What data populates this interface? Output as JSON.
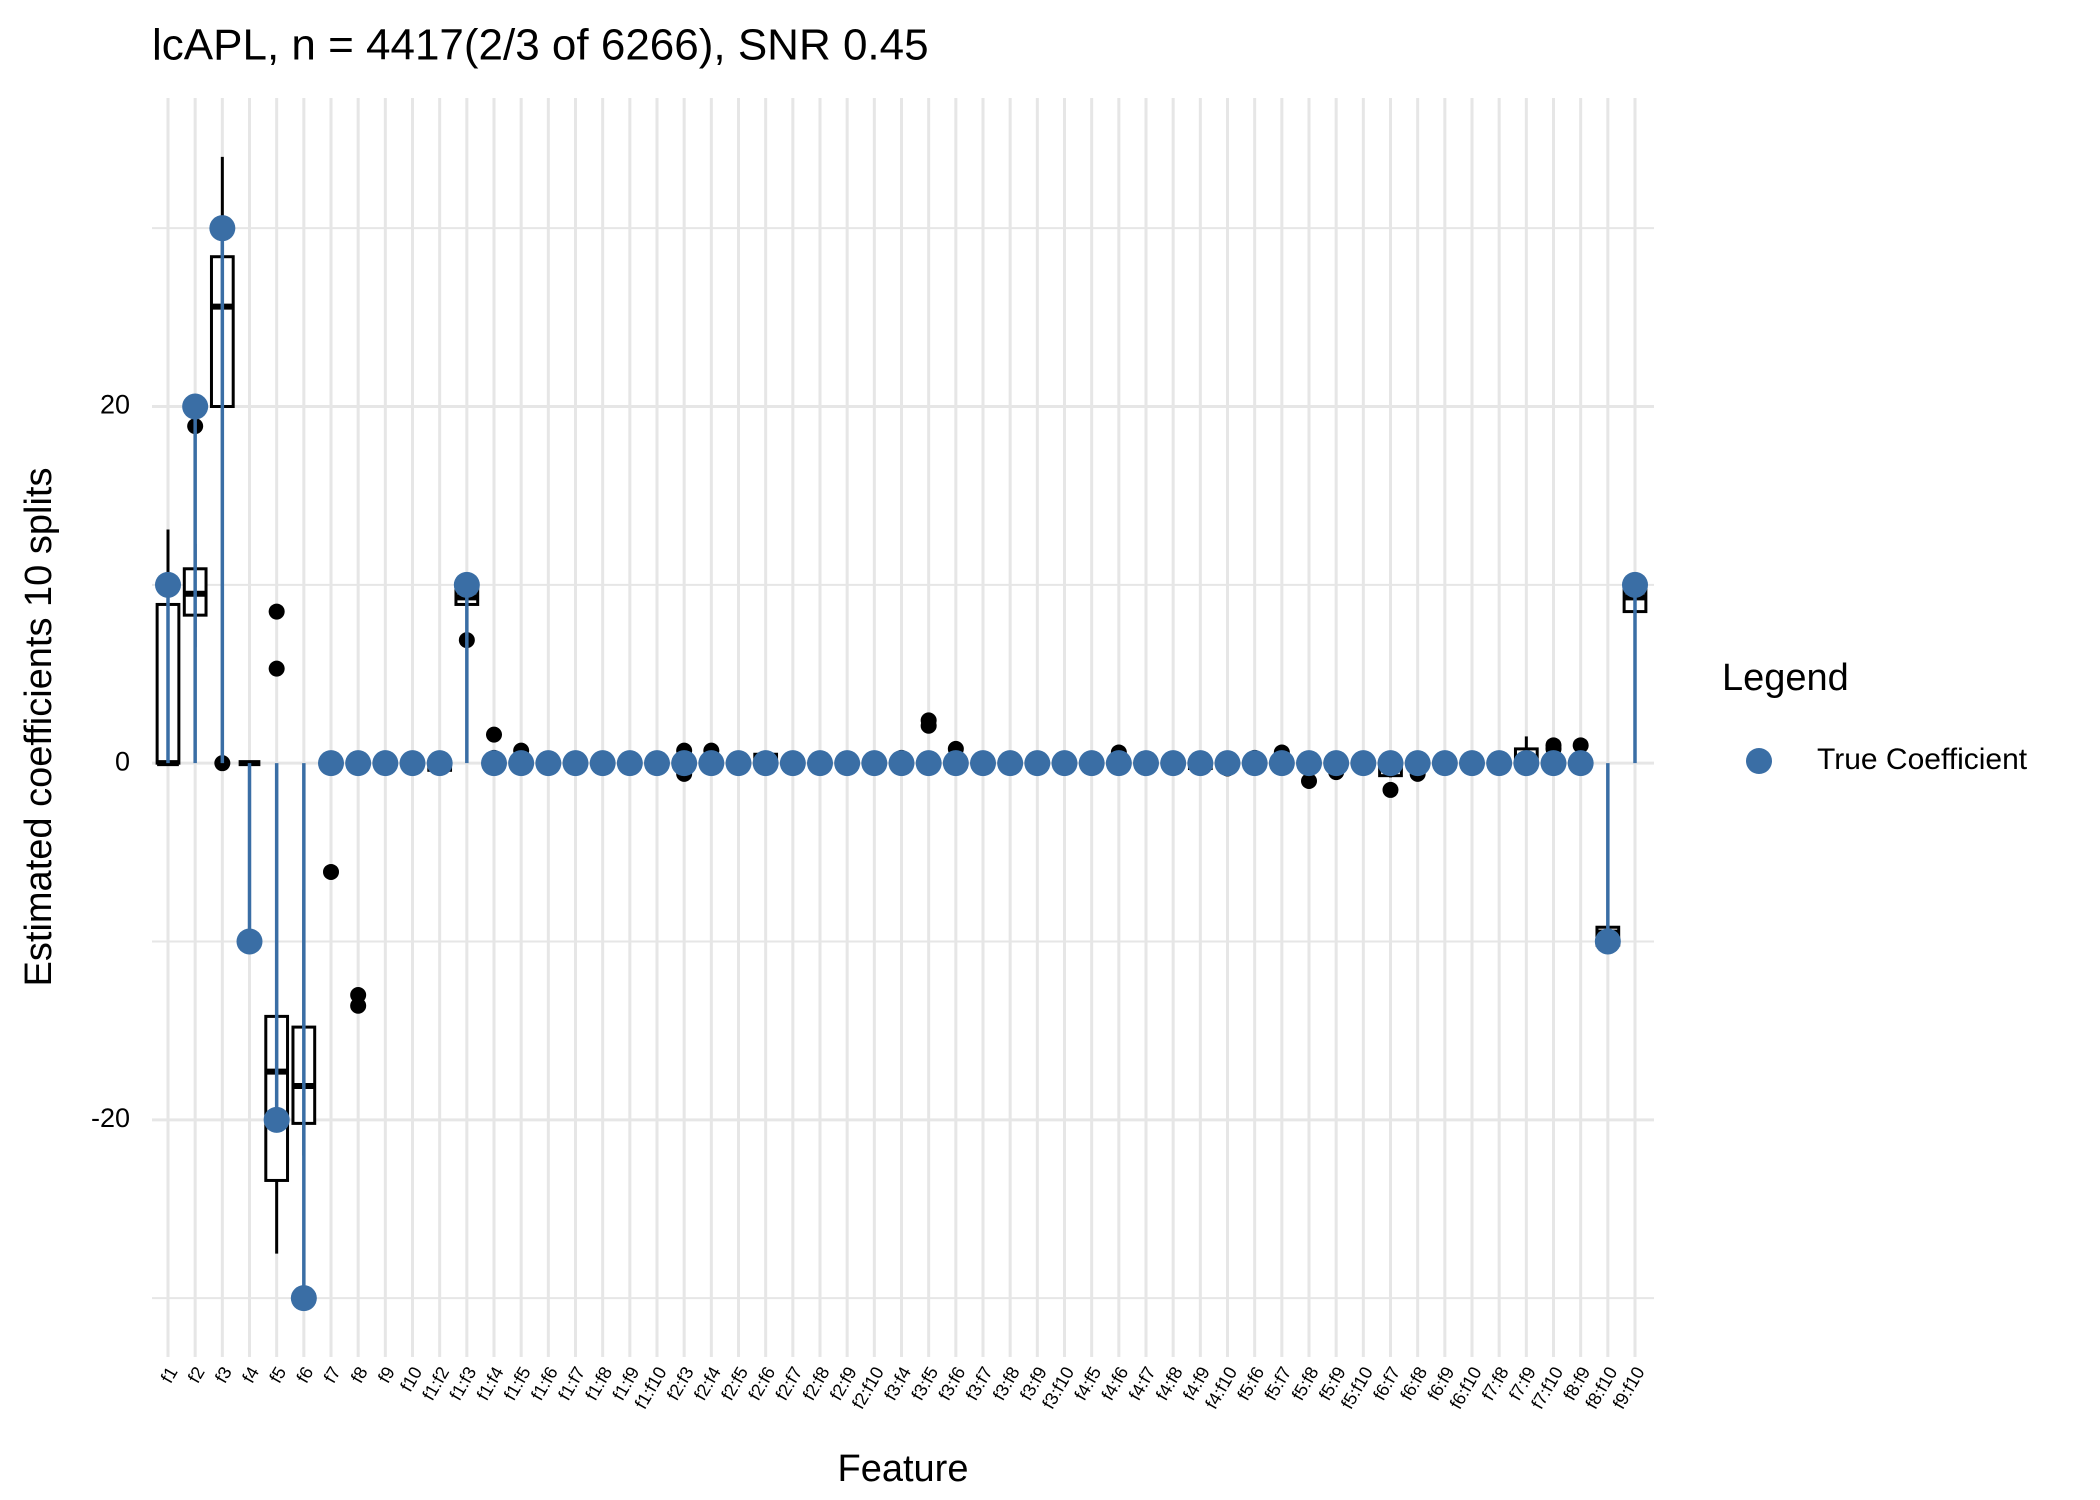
{
  "chart_data": {
    "type": "boxplot",
    "title": "lcAPL, n = 4417(2/3 of 6266), SNR 0.45",
    "x_label": "Feature",
    "y_label": "Estimated coefficients 10 splits",
    "legend_title": "Legend",
    "legend_position": "right",
    "grid": true,
    "categories": [
      "f1",
      "f2",
      "f3",
      "f4",
      "f5",
      "f6",
      "f7",
      "f8",
      "f9",
      "f10",
      "f1:f2",
      "f1:f3",
      "f1:f4",
      "f1:f5",
      "f1:f6",
      "f1:f7",
      "f1:f8",
      "f1:f9",
      "f1:f10",
      "f2:f3",
      "f2:f4",
      "f2:f5",
      "f2:f6",
      "f2:f7",
      "f2:f8",
      "f2:f9",
      "f2:f10",
      "f3:f4",
      "f3:f5",
      "f3:f6",
      "f3:f7",
      "f3:f8",
      "f3:f9",
      "f3:f10",
      "f4:f5",
      "f4:f6",
      "f4:f7",
      "f4:f8",
      "f4:f9",
      "f4:f10",
      "f5:f6",
      "f5:f7",
      "f5:f8",
      "f5:f9",
      "f5:f10",
      "f6:f7",
      "f6:f8",
      "f6:f9",
      "f6:f10",
      "f7:f8",
      "f7:f9",
      "f7:f10",
      "f8:f9",
      "f8:f10",
      "f9:f10"
    ],
    "ylim": [
      -33.3,
      37.3
    ],
    "yticks": [
      -20,
      0,
      20
    ],
    "minor_yticks": [
      -30,
      -10,
      10,
      30
    ],
    "boxplot": {
      "color": "#000000",
      "lower": [
        0,
        6.5,
        20,
        -0.2,
        -27.5,
        -22,
        0,
        0,
        0,
        0,
        -0.4,
        8.9,
        0,
        0,
        0,
        0,
        0,
        0,
        0,
        0,
        0,
        0,
        0,
        0,
        0,
        0,
        0,
        0,
        0,
        0,
        0,
        0,
        0,
        0,
        0,
        0,
        0,
        0,
        -0.4,
        0,
        0,
        0,
        0,
        0,
        0,
        -0.8,
        0,
        0,
        0,
        0,
        0,
        0,
        0,
        -10.2,
        8.5
      ],
      "q1": [
        0,
        8.3,
        20,
        0,
        -23.4,
        -20.2,
        0,
        0,
        0,
        0,
        -0.4,
        8.9,
        0,
        0,
        0,
        0,
        0,
        0,
        0,
        0,
        0,
        0,
        0,
        0,
        0,
        0,
        0,
        0,
        0,
        0,
        0,
        0,
        0,
        0,
        0,
        0,
        0,
        0,
        -0.3,
        0,
        0,
        0,
        0,
        0,
        0,
        -0.7,
        0,
        0,
        0,
        0,
        0,
        0,
        0,
        -10.2,
        8.5
      ],
      "median": [
        0,
        9.5,
        25.6,
        0,
        -17.3,
        -18.1,
        0,
        0,
        0,
        0,
        0,
        9.3,
        0,
        0,
        0,
        0,
        0,
        0,
        0,
        0,
        0,
        0,
        0.4,
        0,
        0,
        0,
        0,
        0,
        0,
        0,
        0,
        0,
        0,
        0,
        0,
        0,
        0,
        0,
        0,
        0,
        0,
        0,
        0,
        0,
        0,
        -0.1,
        0,
        0,
        0,
        0,
        0.3,
        0,
        0,
        -9.5,
        9.3
      ],
      "q3": [
        8.9,
        10.9,
        28.4,
        0,
        -14.2,
        -14.8,
        0,
        0,
        0,
        0,
        0,
        10,
        0,
        0,
        0,
        0,
        0,
        0,
        0,
        0,
        0,
        0,
        0.5,
        0,
        0,
        0,
        0,
        0,
        0,
        0,
        0,
        0,
        0,
        0,
        0,
        0,
        0,
        0,
        0,
        0,
        0,
        0,
        0,
        0,
        0,
        0,
        0,
        0,
        0,
        0,
        0.8,
        0,
        0,
        -9.2,
        9.8
      ],
      "upper": [
        13.1,
        12.3,
        34,
        0.1,
        -14.2,
        -7.1,
        0,
        0,
        0,
        0,
        0,
        10,
        0,
        0,
        0,
        0,
        0,
        0,
        0,
        0,
        0,
        0,
        0.5,
        0,
        0,
        0,
        0,
        0,
        0,
        0,
        0,
        0,
        0,
        0,
        0,
        0,
        0,
        0,
        0,
        0,
        0,
        0,
        0,
        0,
        0,
        0,
        0,
        0,
        0,
        0,
        1.5,
        0,
        0,
        -9.2,
        9.8
      ],
      "outliers": [
        [],
        [
          18.9
        ],
        [
          0
        ],
        [],
        [
          8.5,
          5.3
        ],
        [],
        [
          -6.1
        ],
        [
          -13,
          -13.6
        ],
        [],
        [],
        [],
        [
          6.9
        ],
        [
          1.6,
          0.3
        ],
        [
          0.7
        ],
        [],
        [],
        [],
        [],
        [],
        [
          0.7,
          -0.6
        ],
        [
          0.7
        ],
        [],
        [],
        [],
        [],
        [],
        [],
        [
          0.3
        ],
        [
          2.4,
          2.1
        ],
        [
          0.8
        ],
        [],
        [],
        [],
        [],
        [],
        [
          0.6
        ],
        [],
        [],
        [],
        [
          -0.3
        ],
        [
          0.3
        ],
        [
          0.6
        ],
        [
          -1
        ],
        [
          -0.5
        ],
        [],
        [
          -1.5
        ],
        [
          -0.6
        ],
        [],
        [],
        [],
        [],
        [
          1,
          0.8
        ],
        [
          1
        ],
        [],
        []
      ]
    },
    "series": [
      {
        "name": "True Coefficient",
        "color": "#3a6ea5",
        "values": [
          10,
          20,
          30,
          -10,
          -20,
          -30,
          0,
          0,
          0,
          0,
          0,
          10,
          0,
          0,
          0,
          0,
          0,
          0,
          0,
          0,
          0,
          0,
          0,
          0,
          0,
          0,
          0,
          0,
          0,
          0,
          0,
          0,
          0,
          0,
          0,
          0,
          0,
          0,
          0,
          0,
          0,
          0,
          0,
          0,
          0,
          0,
          0,
          0,
          0,
          0,
          0,
          0,
          0,
          -10,
          10
        ]
      }
    ]
  }
}
